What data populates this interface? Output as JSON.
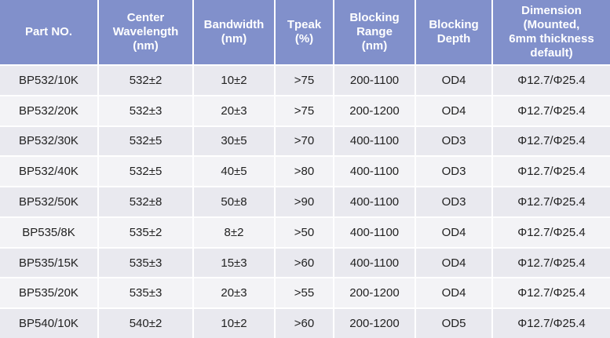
{
  "table": {
    "headers": [
      [
        "Part NO."
      ],
      [
        "Center",
        "Wavelength",
        "(nm)"
      ],
      [
        "Bandwidth",
        "(nm)"
      ],
      [
        "Tpeak",
        "(%)"
      ],
      [
        "Blocking",
        "Range",
        "(nm)"
      ],
      [
        "Blocking",
        "Depth"
      ],
      [
        "Dimension",
        "(Mounted,",
        "6mm thickness",
        "default)"
      ]
    ],
    "rows": [
      [
        "BP532/10K",
        "532±2",
        "10±2",
        ">75",
        "200-1100",
        "OD4",
        "Φ12.7/Φ25.4"
      ],
      [
        "BP532/20K",
        "532±3",
        "20±3",
        ">75",
        "200-1200",
        "OD4",
        "Φ12.7/Φ25.4"
      ],
      [
        "BP532/30K",
        "532±5",
        "30±5",
        ">70",
        "400-1100",
        "OD3",
        "Φ12.7/Φ25.4"
      ],
      [
        "BP532/40K",
        "532±5",
        "40±5",
        ">80",
        "400-1100",
        "OD3",
        "Φ12.7/Φ25.4"
      ],
      [
        "BP532/50K",
        "532±8",
        "50±8",
        ">90",
        "400-1100",
        "OD3",
        "Φ12.7/Φ25.4"
      ],
      [
        "BP535/8K",
        "535±2",
        "8±2",
        ">50",
        "400-1100",
        "OD4",
        "Φ12.7/Φ25.4"
      ],
      [
        "BP535/15K",
        "535±3",
        "15±3",
        ">60",
        "400-1100",
        "OD4",
        "Φ12.7/Φ25.4"
      ],
      [
        "BP535/20K",
        "535±3",
        "20±3",
        ">55",
        "200-1200",
        "OD4",
        "Φ12.7/Φ25.4"
      ],
      [
        "BP540/10K",
        "540±2",
        "10±2",
        ">60",
        "200-1200",
        "OD5",
        "Φ12.7/Φ25.4"
      ]
    ]
  }
}
